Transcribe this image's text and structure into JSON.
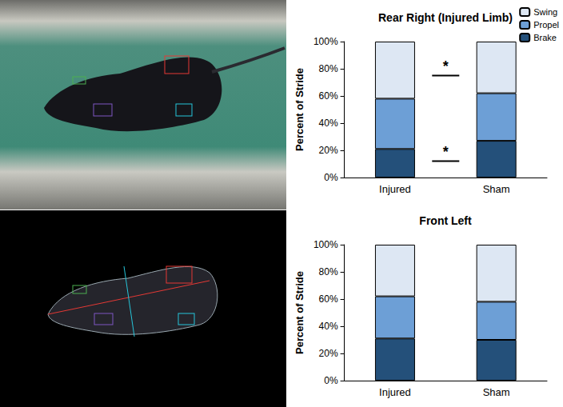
{
  "chart_data": [
    {
      "type": "bar",
      "title": "Rear Right (Injured Limb)",
      "y_label": "Percent of Stride",
      "categories": [
        "Injured",
        "Sham"
      ],
      "series": [
        {
          "name": "Brake",
          "color": "#24507a",
          "values": [
            21,
            27
          ]
        },
        {
          "name": "Propel",
          "color": "#6d9fd6",
          "values": [
            37,
            35
          ]
        },
        {
          "name": "Swing",
          "color": "#dde7f3",
          "values": [
            42,
            38
          ]
        }
      ],
      "stacked": true,
      "ylim": [
        0,
        100
      ],
      "yticks": [
        {
          "value": 0,
          "label": "0%"
        },
        {
          "value": 20,
          "label": "20%"
        },
        {
          "value": 40,
          "label": "40%"
        },
        {
          "value": 60,
          "label": "60%"
        },
        {
          "value": 80,
          "label": "80%"
        },
        {
          "value": 100,
          "label": "100%"
        }
      ],
      "grid": false,
      "legend": "top-right",
      "annotations": [
        {
          "text": "*",
          "y": 75
        },
        {
          "text": "*",
          "y": 12
        }
      ]
    },
    {
      "type": "bar",
      "title": "Front Left",
      "y_label": "Percent of Stride",
      "categories": [
        "Injured",
        "Sham"
      ],
      "series": [
        {
          "name": "Brake",
          "color": "#24507a",
          "values": [
            31,
            30
          ]
        },
        {
          "name": "Propel",
          "color": "#6d9fd6",
          "values": [
            31,
            28
          ]
        },
        {
          "name": "Swing",
          "color": "#dde7f3",
          "values": [
            38,
            42
          ]
        }
      ],
      "stacked": true,
      "ylim": [
        0,
        100
      ],
      "yticks": [
        {
          "value": 0,
          "label": "0%"
        },
        {
          "value": 20,
          "label": "20%"
        },
        {
          "value": 40,
          "label": "40%"
        },
        {
          "value": 60,
          "label": "60%"
        },
        {
          "value": 80,
          "label": "80%"
        },
        {
          "value": 100,
          "label": "100%"
        }
      ],
      "grid": false
    }
  ]
}
